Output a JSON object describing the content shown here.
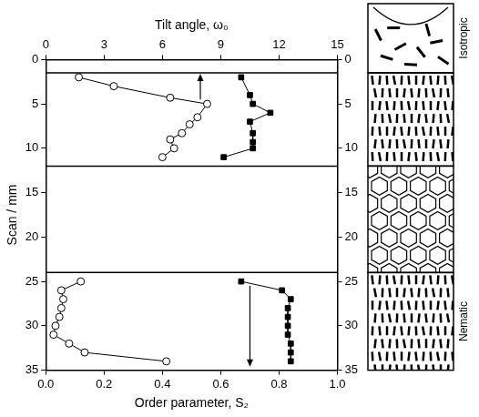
{
  "chart_data": {
    "type": "scatter",
    "x_label": "Order parameter, S₂",
    "x2_label": "Tilt angle, ω₀",
    "y_label": "Scan / mm",
    "xlim": [
      0,
      1
    ],
    "xticks": [
      {
        "value": 0,
        "label": "0.0"
      },
      0.2,
      0.4,
      0.6,
      0.8,
      {
        "value": 1,
        "label": "1.0"
      }
    ],
    "x2lim": [
      0,
      15
    ],
    "x2ticks": [
      0,
      3,
      6,
      9,
      12,
      15
    ],
    "ylim": [
      0,
      35
    ],
    "yticks": [
      0,
      5,
      10,
      15,
      20,
      25,
      30,
      35
    ],
    "y2lim": [
      0,
      35
    ],
    "y2ticks": [
      0,
      5,
      10,
      15,
      20,
      25,
      30,
      35
    ],
    "grid": false,
    "series": [
      {
        "axis": "x2",
        "marker": "open_circle",
        "line_style": "solid",
        "color": "#000000",
        "x": [
          1.7,
          3.5,
          6.4,
          8.3,
          7.8,
          7.4,
          7.0,
          6.4,
          6.6,
          6.0
        ],
        "y": [
          2,
          3,
          4.3,
          5,
          6.5,
          7.3,
          8.3,
          9,
          10,
          11
        ]
      },
      {
        "axis": "x",
        "marker": "square",
        "line_style": "solid",
        "color": "#000000",
        "x": [
          0.67,
          0.7,
          0.71,
          0.77,
          0.7,
          0.71,
          0.71,
          0.71,
          0.61
        ],
        "y": [
          2,
          4,
          5,
          6,
          7,
          8.3,
          9.3,
          10,
          11
        ]
      },
      {
        "axis": "x2",
        "marker": "open_circle",
        "line_style": "solid",
        "color": "#000000",
        "x": [
          1.8,
          0.8,
          0.9,
          0.8,
          0.7,
          0.5,
          0.4,
          1.2,
          2.0,
          6.2
        ],
        "y": [
          25,
          26,
          27,
          28,
          29,
          30,
          31,
          32,
          33,
          34
        ]
      },
      {
        "axis": "x",
        "marker": "square",
        "line_style": "solid",
        "color": "#000000",
        "x": [
          0.67,
          0.81,
          0.84,
          0.83,
          0.83,
          0.83,
          0.83,
          0.84,
          0.84,
          0.84
        ],
        "y": [
          25,
          26,
          27,
          28,
          29,
          30,
          31,
          32,
          33,
          34
        ]
      }
    ],
    "hlines": [
      1.5,
      12,
      24
    ],
    "arrows": [
      {
        "x": 0.53,
        "from": 4.5,
        "to": 1.6
      },
      {
        "x": 0.7,
        "from": 25.5,
        "to": 34.6
      }
    ],
    "phase_labels": [
      "Isotropic",
      null,
      null,
      "Nematic"
    ]
  }
}
